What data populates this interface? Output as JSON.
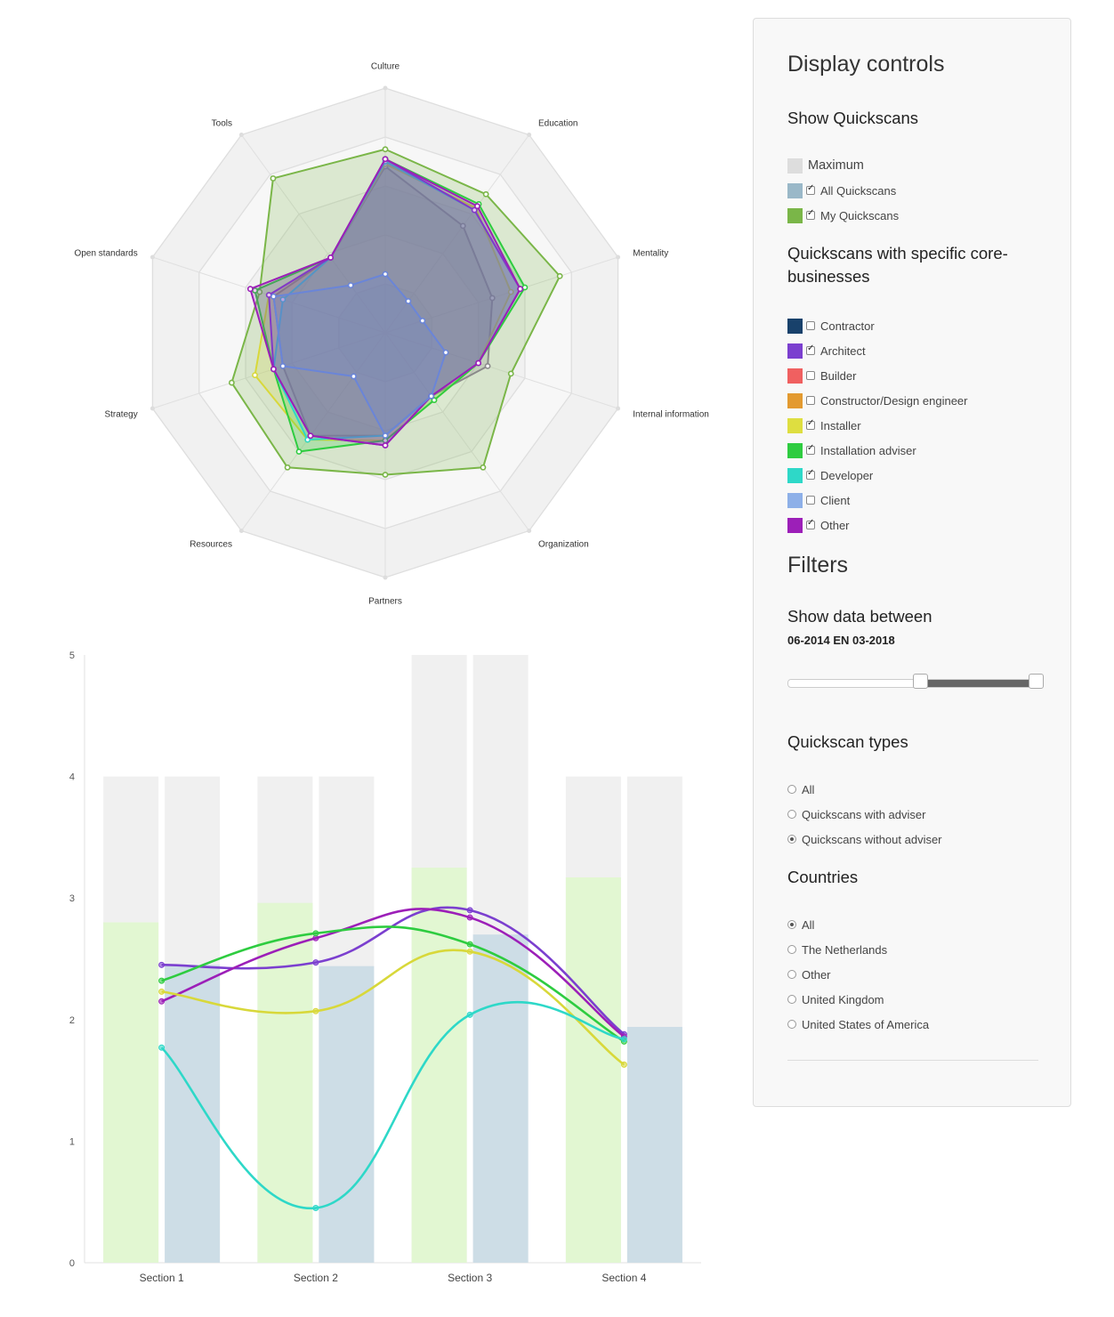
{
  "radar": {
    "axes": [
      "Culture",
      "Education",
      "Mentality",
      "Internal information",
      "Organization",
      "Partners",
      "Resources",
      "Strategy",
      "Open standards",
      "Tools"
    ],
    "max": 5,
    "levels": 5,
    "series": [
      {
        "key": "my",
        "color": "#7ab648",
        "values": [
          3.75,
          3.5,
          3.75,
          2.7,
          3.4,
          2.9,
          3.4,
          3.3,
          2.7,
          3.9
        ]
      },
      {
        "key": "all",
        "color": "#8a8a8a",
        "values": [
          3.4,
          2.7,
          2.3,
          2.2,
          1.6,
          2.1,
          2.6,
          2.2,
          2.4,
          1.9
        ]
      },
      {
        "key": "installer",
        "color": "#d8d83a",
        "values": [
          3.45,
          3.15,
          2.7,
          2.0,
          1.7,
          2.2,
          2.7,
          2.8,
          2.5,
          1.9
        ]
      },
      {
        "key": "installation_adviser",
        "color": "#2ecc40",
        "values": [
          3.55,
          3.25,
          3.0,
          2.0,
          1.7,
          2.2,
          3.0,
          2.4,
          2.8,
          1.9
        ]
      },
      {
        "key": "developer",
        "color": "#2ed8c8",
        "values": [
          3.5,
          3.1,
          2.9,
          2.0,
          1.6,
          2.1,
          2.7,
          2.4,
          2.2,
          1.9
        ]
      },
      {
        "key": "architect",
        "color": "#7b3fcf",
        "values": [
          3.55,
          3.1,
          2.9,
          2.0,
          1.6,
          2.3,
          2.6,
          2.4,
          2.5,
          1.9
        ]
      },
      {
        "key": "other",
        "color": "#9c1fb8",
        "values": [
          3.55,
          3.2,
          2.9,
          2.0,
          1.6,
          2.3,
          2.6,
          2.4,
          2.9,
          1.9
        ]
      },
      {
        "key": "client",
        "color": "#6a85d8",
        "values": [
          1.2,
          0.8,
          0.8,
          1.3,
          1.6,
          2.1,
          1.1,
          2.2,
          2.4,
          1.2
        ]
      }
    ]
  },
  "chart_data": {
    "type": "bar",
    "categories": [
      "Section 1",
      "Section 2",
      "Section 3",
      "Section 4"
    ],
    "ylim": [
      0,
      5
    ],
    "yticks": [
      "0",
      "1",
      "2",
      "3",
      "4",
      "5"
    ],
    "bar_series": [
      {
        "key": "maximum",
        "color": "#f0f0f0",
        "values": [
          4,
          4,
          5,
          4
        ]
      },
      {
        "key": "my",
        "color": "#e2f7d2",
        "values": [
          2.8,
          2.96,
          3.25,
          3.17
        ]
      },
      {
        "key": "all",
        "color": "#cddde6",
        "values": [
          2.45,
          2.44,
          2.7,
          1.94
        ]
      }
    ],
    "line_series": [
      {
        "key": "architect",
        "color": "#7b3fcf",
        "values": [
          2.45,
          2.47,
          2.9,
          1.88
        ]
      },
      {
        "key": "other",
        "color": "#9c1fb8",
        "values": [
          2.15,
          2.67,
          2.84,
          1.86
        ]
      },
      {
        "key": "installation_adviser",
        "color": "#2ecc40",
        "values": [
          2.32,
          2.71,
          2.62,
          1.82
        ]
      },
      {
        "key": "installer",
        "color": "#d8d83a",
        "values": [
          2.23,
          2.07,
          2.56,
          1.63
        ]
      },
      {
        "key": "developer",
        "color": "#2ed8c8",
        "values": [
          1.77,
          0.45,
          2.04,
          1.84
        ]
      }
    ]
  },
  "panel": {
    "title": "Display controls",
    "show_title": "Show Quickscans",
    "show_items": [
      {
        "label": "Maximum",
        "color": "#dddddd",
        "checkbox": false
      },
      {
        "label": "All Quickscans",
        "color": "#9ab8c8",
        "checkbox": true,
        "checked": true
      },
      {
        "label": "My Quickscans",
        "color": "#7ab648",
        "checkbox": true,
        "checked": true
      }
    ],
    "core_title": "Quickscans with specific core-businesses",
    "core_items": [
      {
        "label": "Contractor",
        "color": "#18416b",
        "checked": false
      },
      {
        "label": "Architect",
        "color": "#7b3fcf",
        "checked": true
      },
      {
        "label": "Builder",
        "color": "#f06060",
        "checked": false
      },
      {
        "label": "Constructor/Design engineer",
        "color": "#e39a30",
        "checked": false
      },
      {
        "label": "Installer",
        "color": "#dede40",
        "checked": true
      },
      {
        "label": "Installation adviser",
        "color": "#2ecc40",
        "checked": true
      },
      {
        "label": "Developer",
        "color": "#2ed8c8",
        "checked": true
      },
      {
        "label": "Client",
        "color": "#8eb0e8",
        "checked": false
      },
      {
        "label": "Other",
        "color": "#9c1fb8",
        "checked": true
      }
    ],
    "filters_title": "Filters",
    "date_title": "Show data between",
    "date_range": "06-2014 EN 03-2018",
    "slider": {
      "low_fraction": 0.52,
      "high_fraction": 1.0
    },
    "types_title": "Quickscan types",
    "types": [
      {
        "label": "All",
        "checked": false
      },
      {
        "label": "Quickscans with adviser",
        "checked": false
      },
      {
        "label": "Quickscans without adviser",
        "checked": true
      }
    ],
    "countries_title": "Countries",
    "countries": [
      {
        "label": "All",
        "checked": true
      },
      {
        "label": "The Netherlands",
        "checked": false
      },
      {
        "label": "Other",
        "checked": false
      },
      {
        "label": "United Kingdom",
        "checked": false
      },
      {
        "label": "United States of America",
        "checked": false
      }
    ]
  }
}
